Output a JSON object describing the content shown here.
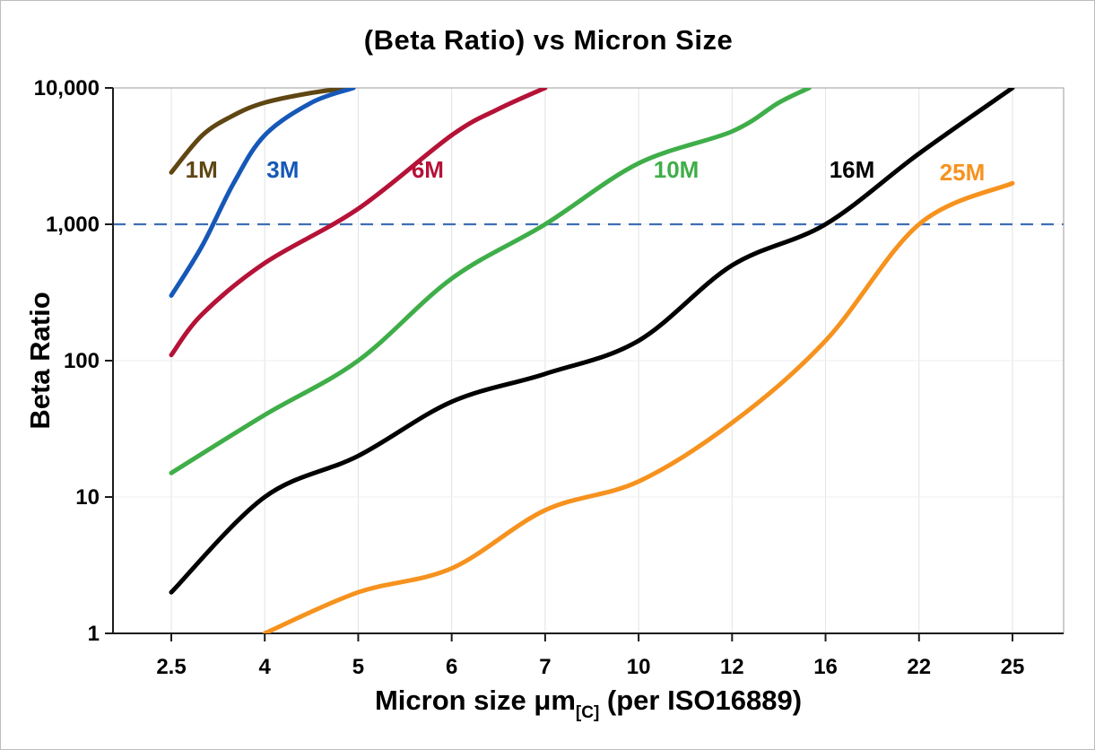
{
  "page": {
    "title": "(Beta Ratio) vs Micron Size"
  },
  "chart_data": {
    "type": "line",
    "title": "(Beta Ratio) vs Micron Size",
    "xlabel": {
      "main": "Micron size μm",
      "sub": "[C]",
      "rest": " (per ISO16889)"
    },
    "ylabel": "Beta Ratio",
    "x_scale": "categorical",
    "x_values": [
      2.5,
      4,
      5,
      6,
      7,
      10,
      12,
      16,
      22,
      25
    ],
    "x_tick_labels": [
      "2.5",
      "4",
      "5",
      "6",
      "7",
      "10",
      "12",
      "16",
      "22",
      "25"
    ],
    "y_scale": "log",
    "ylim": [
      1,
      10000
    ],
    "y_ticks": [
      1,
      10,
      100,
      1000,
      10000
    ],
    "y_tick_labels": [
      "1",
      "10",
      "100",
      "1,000",
      "10,000"
    ],
    "grid": true,
    "legend_position": "inline-labels",
    "reference_line": {
      "y": 1000,
      "style": "dashed",
      "color": "#3e6fb5"
    },
    "series": [
      {
        "name": "1M",
        "color": "#5f4612",
        "points": [
          [
            2.5,
            2400
          ],
          [
            3,
            4500
          ],
          [
            3.5,
            6300
          ],
          [
            4,
            7800
          ],
          [
            4.5,
            9200
          ],
          [
            4.9,
            10000
          ]
        ],
        "label_pos": {
          "index": 0.15,
          "y": 2200
        }
      },
      {
        "name": "3M",
        "color": "#1658b8",
        "points": [
          [
            2.5,
            300
          ],
          [
            3,
            700
          ],
          [
            3.5,
            2000
          ],
          [
            4,
            4500
          ],
          [
            4.5,
            7800
          ],
          [
            4.95,
            10000
          ]
        ],
        "label_pos": {
          "index": 1.02,
          "y": 2200
        }
      },
      {
        "name": "6M",
        "color": "#b51237",
        "points": [
          [
            2.5,
            110
          ],
          [
            3,
            220
          ],
          [
            4,
            520
          ],
          [
            5,
            1300
          ],
          [
            6,
            4500
          ],
          [
            6.5,
            7000
          ],
          [
            7,
            10000
          ]
        ],
        "label_pos": {
          "index": 2.57,
          "y": 2200
        }
      },
      {
        "name": "10M",
        "color": "#3fae49",
        "points": [
          [
            2.5,
            15
          ],
          [
            4,
            40
          ],
          [
            5,
            100
          ],
          [
            6,
            400
          ],
          [
            7,
            1000
          ],
          [
            10,
            2800
          ],
          [
            12,
            4800
          ],
          [
            14,
            7800
          ],
          [
            15.3,
            10000
          ]
        ],
        "label_pos": {
          "index": 5.16,
          "y": 2200
        }
      },
      {
        "name": "16M",
        "color": "#000000",
        "points": [
          [
            2.5,
            2
          ],
          [
            4,
            10
          ],
          [
            5,
            20
          ],
          [
            6,
            50
          ],
          [
            7,
            80
          ],
          [
            10,
            140
          ],
          [
            12,
            500
          ],
          [
            16,
            1000
          ],
          [
            22,
            3300
          ],
          [
            25,
            10000
          ]
        ],
        "label_pos": {
          "index": 7.04,
          "y": 2200
        }
      },
      {
        "name": "25M",
        "color": "#f6921e",
        "points": [
          [
            4,
            1
          ],
          [
            5,
            2
          ],
          [
            6,
            3
          ],
          [
            7,
            8
          ],
          [
            10,
            13
          ],
          [
            12,
            35
          ],
          [
            16,
            140
          ],
          [
            22,
            1000
          ],
          [
            25,
            2000
          ]
        ],
        "label_pos": {
          "index": 8.22,
          "y": 2100
        }
      }
    ]
  }
}
